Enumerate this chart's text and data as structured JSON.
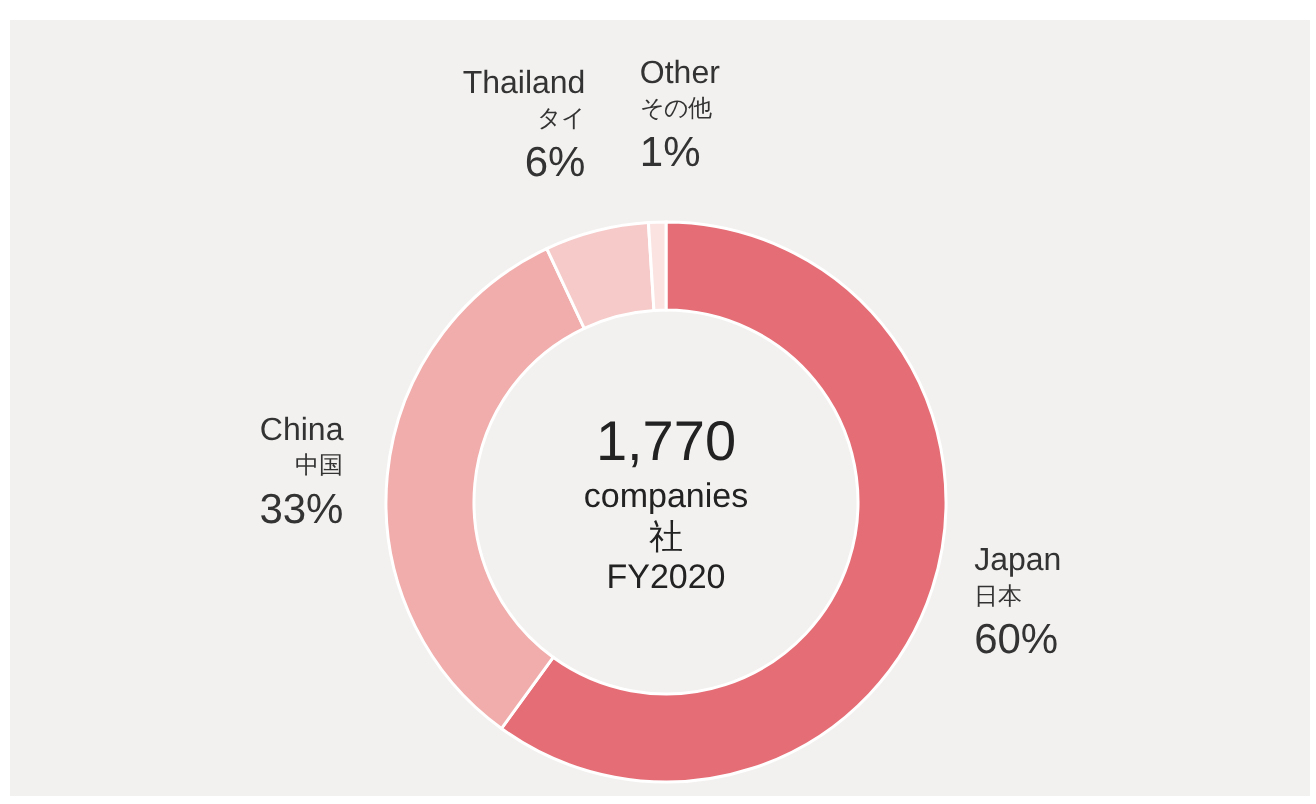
{
  "chart_data": {
    "type": "donut",
    "categories": [
      "Japan\n日本",
      "China\n中国",
      "Thailand\nタイ",
      "Other\nその他"
    ],
    "values": [
      60,
      33,
      6,
      1
    ],
    "value_labels": [
      "60%",
      "33%",
      "6%",
      "1%"
    ],
    "colors": [
      "#e56e76",
      "#f0adab",
      "#f5cac8",
      "#fae3e1"
    ],
    "annotations": [
      "1,770",
      "companies",
      "社",
      "FY2020"
    ]
  }
}
